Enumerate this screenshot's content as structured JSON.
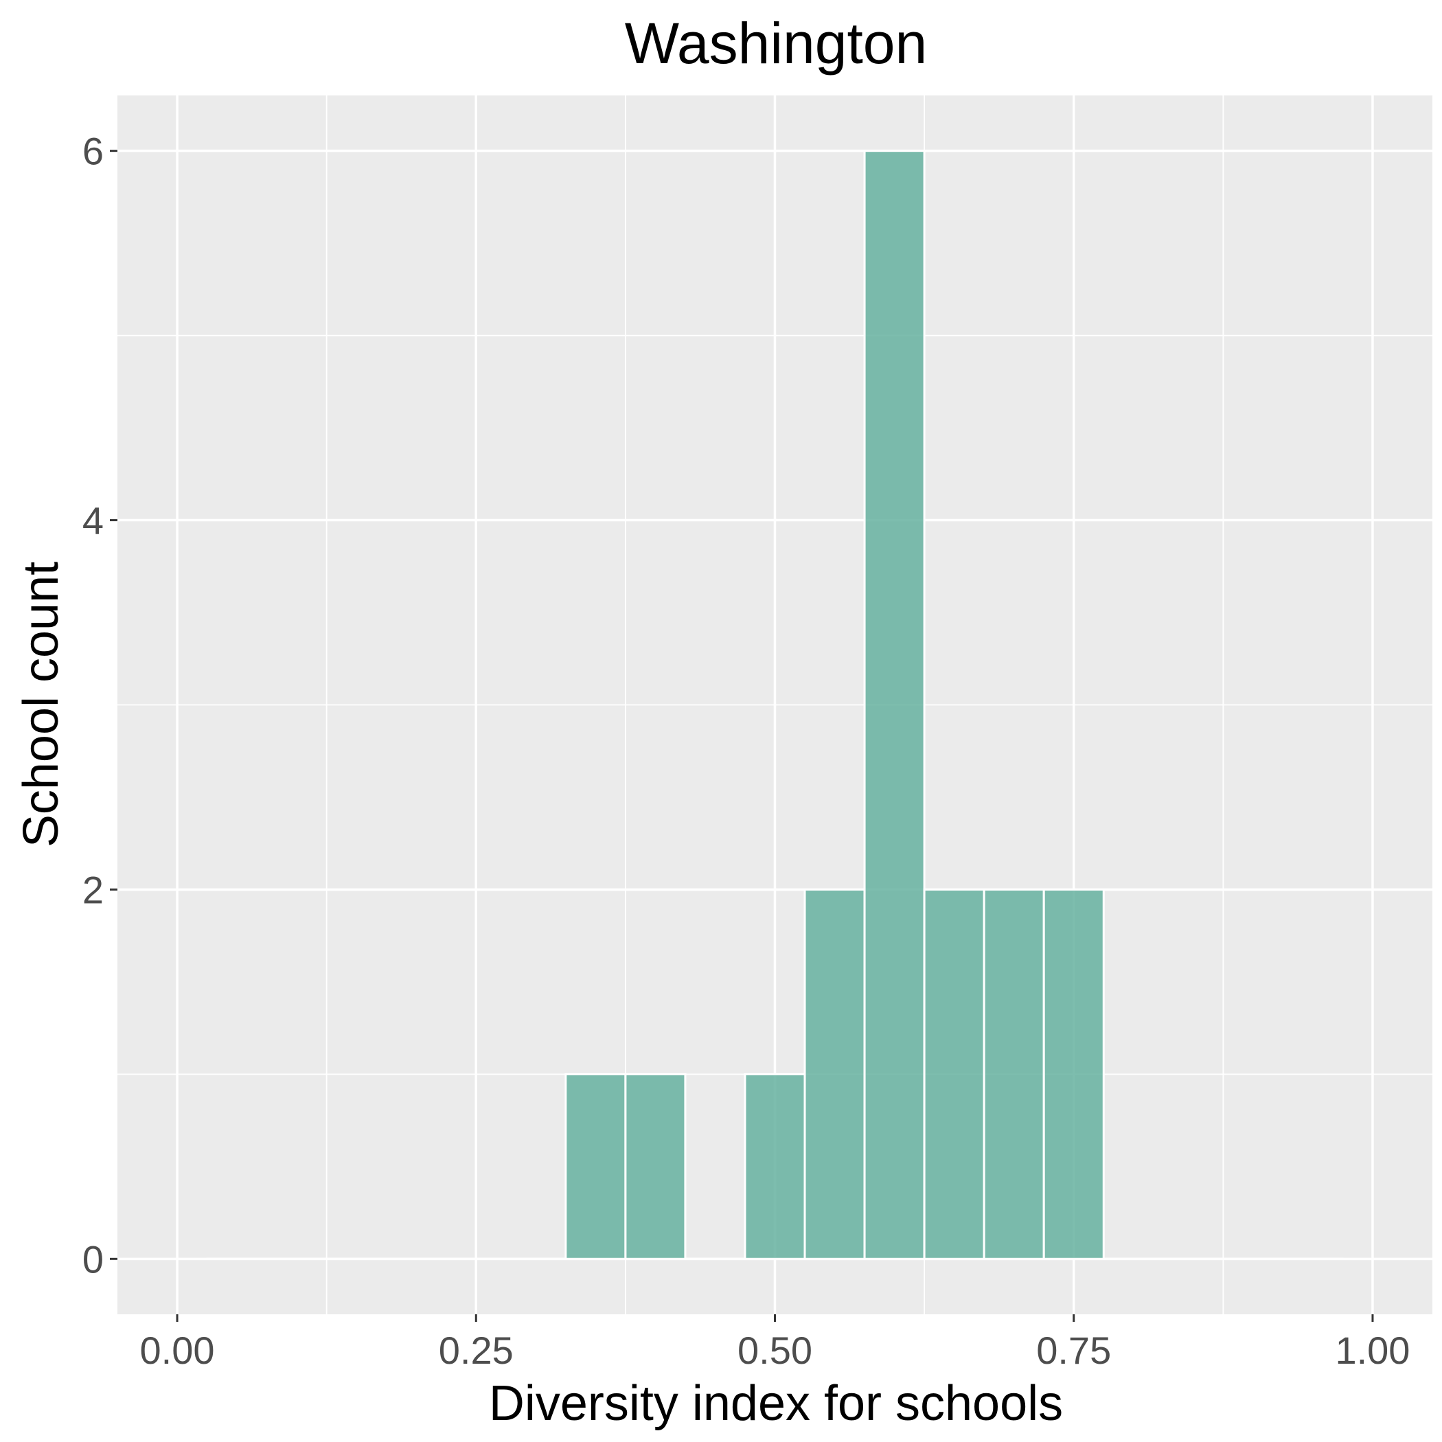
{
  "chart_data": {
    "type": "bar",
    "title": "Washington",
    "xlabel": "Diversity index for schools",
    "ylabel": "School count",
    "bin_width": 0.05,
    "bins": [
      {
        "x": 0.05,
        "count": 0
      },
      {
        "x": 0.1,
        "count": 0
      },
      {
        "x": 0.15,
        "count": 0
      },
      {
        "x": 0.2,
        "count": 0
      },
      {
        "x": 0.25,
        "count": 0
      },
      {
        "x": 0.3,
        "count": 0
      },
      {
        "x": 0.35,
        "count": 1
      },
      {
        "x": 0.4,
        "count": 1
      },
      {
        "x": 0.45,
        "count": 0
      },
      {
        "x": 0.5,
        "count": 1
      },
      {
        "x": 0.55,
        "count": 2
      },
      {
        "x": 0.6,
        "count": 6
      },
      {
        "x": 0.65,
        "count": 2
      },
      {
        "x": 0.7,
        "count": 2
      },
      {
        "x": 0.75,
        "count": 2
      },
      {
        "x": 0.8,
        "count": 0
      },
      {
        "x": 0.85,
        "count": 0
      },
      {
        "x": 0.9,
        "count": 0
      },
      {
        "x": 0.95,
        "count": 0
      }
    ],
    "xlim": [
      -0.05,
      1.05
    ],
    "ylim": [
      -0.3,
      6.3
    ],
    "x_ticks": [
      {
        "value": 0.0,
        "label": "0.00"
      },
      {
        "value": 0.25,
        "label": "0.25"
      },
      {
        "value": 0.5,
        "label": "0.50"
      },
      {
        "value": 0.75,
        "label": "0.75"
      },
      {
        "value": 1.0,
        "label": "1.00"
      }
    ],
    "y_ticks": [
      {
        "value": 0,
        "label": "0"
      },
      {
        "value": 2,
        "label": "2"
      },
      {
        "value": 4,
        "label": "4"
      },
      {
        "value": 6,
        "label": "6"
      }
    ],
    "grid": true,
    "colors": {
      "bar_fill": "#66b2a0",
      "panel_bg": "#ebebeb",
      "grid": "#ffffff"
    }
  }
}
